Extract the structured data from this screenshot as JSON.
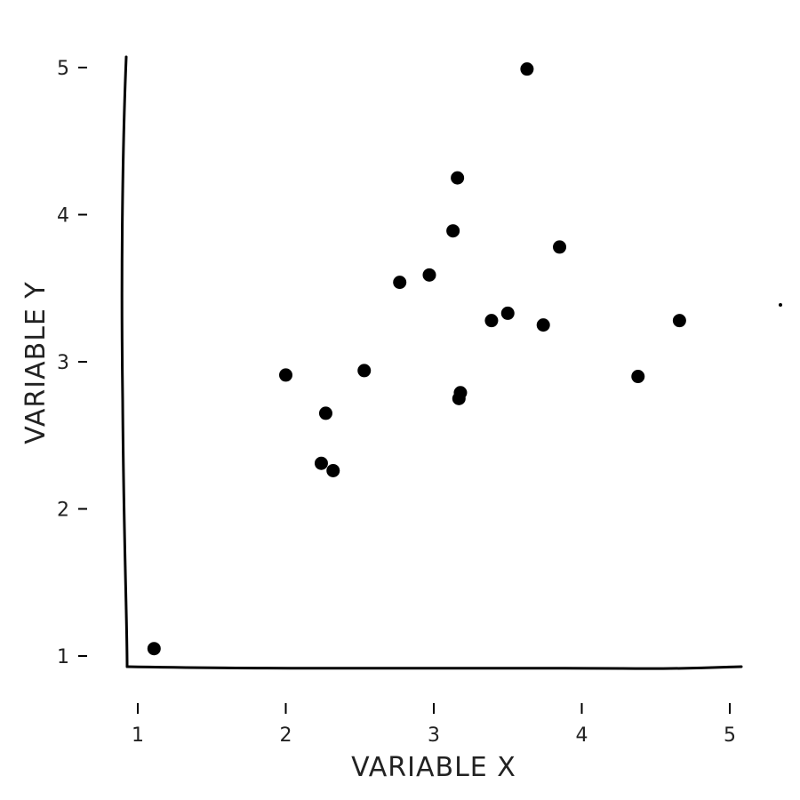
{
  "chart_data": {
    "type": "scatter",
    "title": "",
    "xlabel": "VARIABLE X",
    "ylabel": "VARIABLE Y",
    "xlim": [
      1,
      5
    ],
    "ylim": [
      1,
      5
    ],
    "xticks": [
      1,
      2,
      3,
      4,
      5
    ],
    "yticks": [
      1,
      2,
      3,
      4,
      5
    ],
    "grid": false,
    "point_color": "#000000",
    "points": [
      {
        "x": 1.11,
        "y": 1.05
      },
      {
        "x": 2.0,
        "y": 2.91
      },
      {
        "x": 2.24,
        "y": 2.31
      },
      {
        "x": 2.27,
        "y": 2.65
      },
      {
        "x": 2.32,
        "y": 2.26
      },
      {
        "x": 2.53,
        "y": 2.94
      },
      {
        "x": 2.77,
        "y": 3.54
      },
      {
        "x": 2.97,
        "y": 3.59
      },
      {
        "x": 3.13,
        "y": 3.89
      },
      {
        "x": 3.16,
        "y": 4.25
      },
      {
        "x": 3.17,
        "y": 2.75
      },
      {
        "x": 3.18,
        "y": 2.79
      },
      {
        "x": 3.39,
        "y": 3.28
      },
      {
        "x": 3.5,
        "y": 3.33
      },
      {
        "x": 3.63,
        "y": 4.99
      },
      {
        "x": 3.74,
        "y": 3.25
      },
      {
        "x": 3.85,
        "y": 3.78
      },
      {
        "x": 4.38,
        "y": 2.9
      },
      {
        "x": 4.66,
        "y": 3.28
      }
    ]
  }
}
